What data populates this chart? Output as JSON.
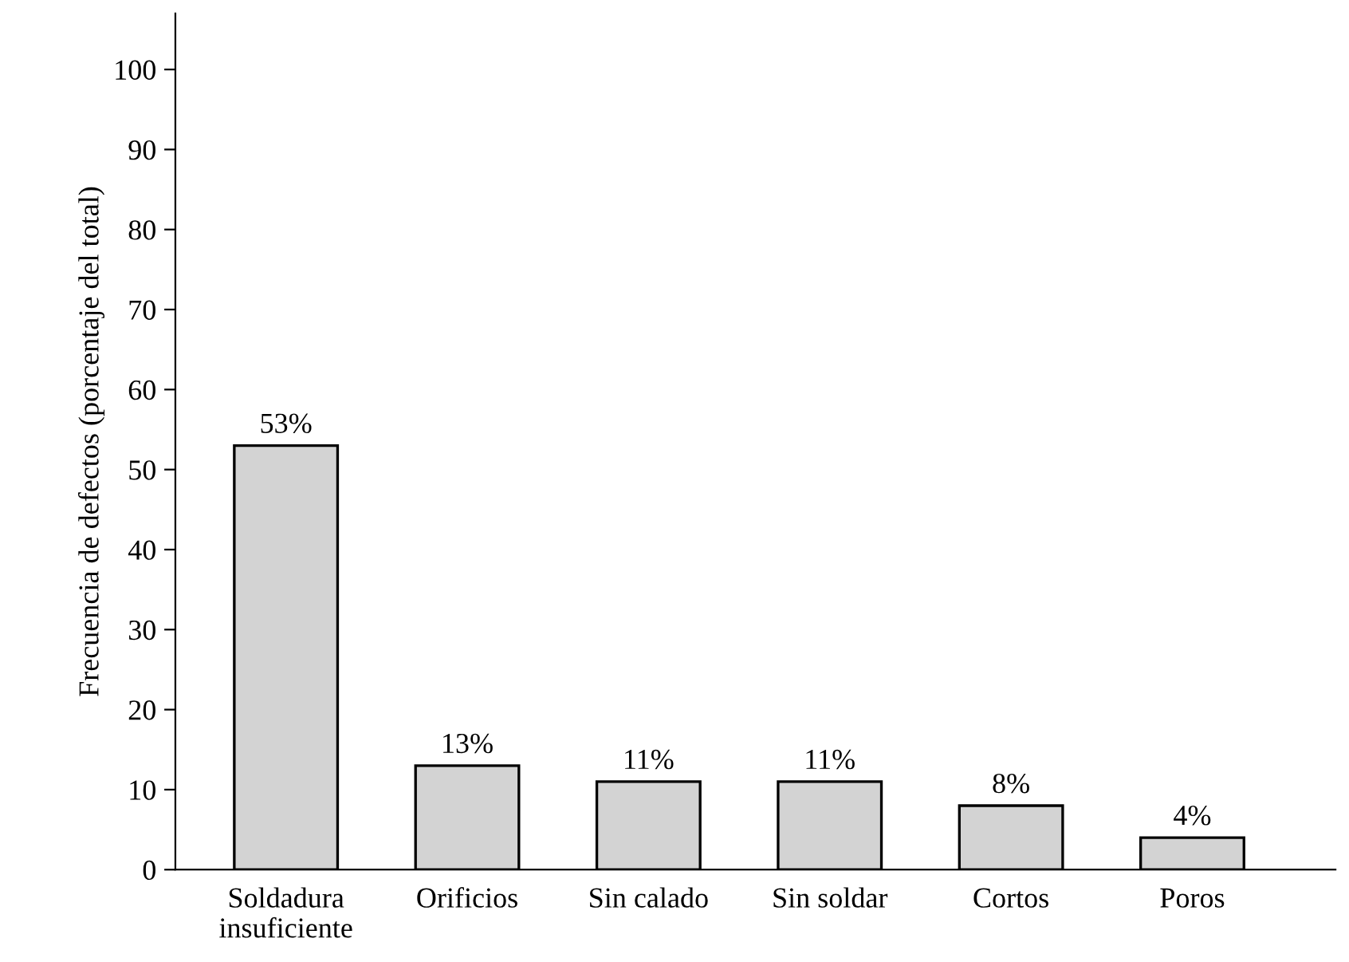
{
  "chart_data": {
    "type": "bar",
    "categories": [
      "Soldadura\ninsuficiente",
      "Orificios",
      "Sin calado",
      "Sin soldar",
      "Cortos",
      "Poros"
    ],
    "values": [
      53,
      13,
      11,
      11,
      8,
      4
    ],
    "value_labels": [
      "53%",
      "13%",
      "11%",
      "11%",
      "8%",
      "4%"
    ],
    "color": "#d3d3d3",
    "ylabel": "Frecuencia de defectos (porcentaje del total)",
    "ylim": [
      0,
      107
    ],
    "yticks": [
      0,
      10,
      20,
      30,
      40,
      50,
      60,
      70,
      80,
      90,
      100
    ],
    "grid": false,
    "legend": false
  }
}
